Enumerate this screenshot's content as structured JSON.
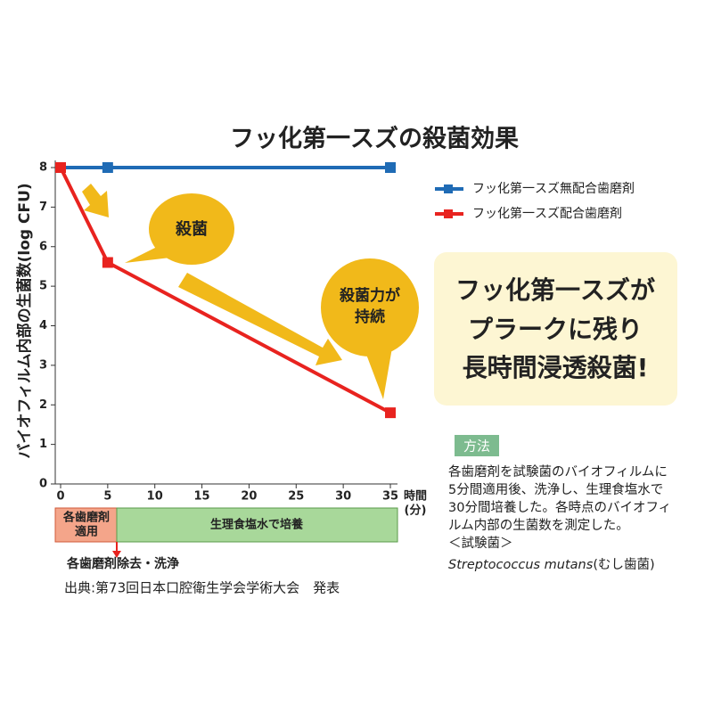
{
  "chart_data": {
    "type": "line",
    "title": "フッ化第一スズの殺菌効果",
    "y_label": "バイオフィルム内部の生菌数(log CFU)",
    "x_label": [
      "時間",
      "(分)"
    ],
    "x": [
      0,
      5,
      35
    ],
    "xlim": [
      0,
      35
    ],
    "xticks": [
      0,
      5,
      10,
      15,
      20,
      25,
      30,
      35
    ],
    "ylim": [
      0,
      8
    ],
    "yticks": [
      0,
      1,
      2,
      3,
      4,
      5,
      6,
      7,
      8
    ],
    "legend": "upper right",
    "series": [
      {
        "name": "フッ化第一スズ無配合歯磨剤",
        "color": "#1f6bb5",
        "values": [
          8,
          8,
          8
        ]
      },
      {
        "name": "フッ化第一スズ配合歯磨剤",
        "color": "#e8231f",
        "values": [
          8,
          5.6,
          1.8
        ]
      }
    ],
    "annotations": {
      "kill": "殺菌",
      "sustained": [
        "殺菌力が",
        "持続"
      ]
    },
    "callout_box": [
      "フッ化第一スズが",
      "プラークに残り",
      "長時間浸透殺菌!"
    ],
    "phases": [
      {
        "label": [
          "各歯磨剤",
          "適用"
        ]
      },
      {
        "label": [
          "生理食塩水で培養"
        ]
      }
    ],
    "phase_note": "各歯磨剤除去・洗浄",
    "source": "出典:第73回日本口腔衛生学会学術大会　発表",
    "method": {
      "title": "方法",
      "lines": [
        "各歯磨剤を試験菌のバイオフィルムに",
        "5分間適用後、洗浄し、生理食塩水で",
        "30分間培養した。各時点のバイオフィ",
        "ルム内部の生菌数を測定した。"
      ],
      "organism_heading": "＜試験菌＞",
      "organism": "Streptococcus mutans",
      "organism_note": "(むし歯菌)"
    }
  }
}
